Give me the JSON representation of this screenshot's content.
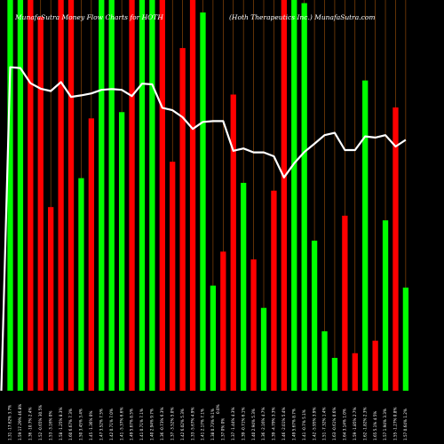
{
  "header": {
    "left": "MunafaSutra Money Flow Charts for HOTH",
    "right": "(Hoth Therapeutics Inc.) MunafaSutra.com"
  },
  "chart_data": {
    "type": "bar",
    "colors": {
      "up": "#00ff00",
      "down": "#ff0000",
      "line": "#ffffff",
      "grid": "#a0520a",
      "background": "#000000"
    },
    "ylim": [
      0,
      100
    ],
    "bars": [
      {
        "label": "1.31 -17.62% 3.7%",
        "value": 100,
        "dir": "up"
      },
      {
        "label": "1.59 17.29% 46.8%",
        "value": 100,
        "dir": "up"
      },
      {
        "label": "1.36 -10.7% 2.4%",
        "value": 100,
        "dir": "down"
      },
      {
        "label": "1.52 -0.65% 30.5%",
        "value": 95.7,
        "dir": "down"
      },
      {
        "label": "1.53 -3.16% 0%",
        "value": 47,
        "dir": "down"
      },
      {
        "label": "1.58 -1.25% 8.3%",
        "value": 100,
        "dir": "down"
      },
      {
        "label": "1.60 6.67% 7.3%",
        "value": 100,
        "dir": "down"
      },
      {
        "label": "1.50 3.45% 3.4%",
        "value": 54.4,
        "dir": "up"
      },
      {
        "label": "1.45 -1.36% 0%",
        "value": 69.7,
        "dir": "down"
      },
      {
        "label": "1.47 3.52% 7.5%",
        "value": 100,
        "dir": "up"
      },
      {
        "label": "1.42 0.71% 7.0%",
        "value": 100,
        "dir": "up"
      },
      {
        "label": "1.41 -5.37% 6.6%",
        "value": 71.3,
        "dir": "up"
      },
      {
        "label": "1.49 5.67% 8.5%",
        "value": 100,
        "dir": "down"
      },
      {
        "label": "1.41 0.71% 7.1%",
        "value": 100,
        "dir": "up"
      },
      {
        "label": "1.40 2.94% 9.7%",
        "value": 100,
        "dir": "up"
      },
      {
        "label": "1.36 -0.73% 6.3%",
        "value": 100,
        "dir": "down"
      },
      {
        "label": "1.37 -3.52% 5.0%",
        "value": 58.6,
        "dir": "down"
      },
      {
        "label": "1.42 6.02% 5.3%",
        "value": 87.7,
        "dir": "down"
      },
      {
        "label": "1.33 -5.67% 4.9%",
        "value": 100,
        "dir": "down"
      },
      {
        "label": "1.41 2.17% 7.1%",
        "value": 96.8,
        "dir": "up"
      },
      {
        "label": "1.38 0.73% 9.1%",
        "value": 26.9,
        "dir": "up"
      },
      {
        "label": "1.37 0% 0%",
        "value": 35.6,
        "dir": "down"
      },
      {
        "label": "1.37 -1.44% 4.3%",
        "value": 75.8,
        "dir": "down"
      },
      {
        "label": "1.39 -0.71% 6.1%",
        "value": 53.2,
        "dir": "up"
      },
      {
        "label": "1.40 2.94% 5.3%",
        "value": 33.6,
        "dir": "down"
      },
      {
        "label": "1.36 -2.16% 4.7%",
        "value": 21.2,
        "dir": "up"
      },
      {
        "label": "1.39 -4.79% 3.3%",
        "value": 51.2,
        "dir": "down"
      },
      {
        "label": "1.46 -2.01% 5.4%",
        "value": 100,
        "dir": "down"
      },
      {
        "label": "1.49 5.67% 8.7%",
        "value": 100,
        "dir": "up"
      },
      {
        "label": "1.41 -0.7% 5.1%",
        "value": 99.2,
        "dir": "up"
      },
      {
        "label": "1.42 -5.95% 3.9%",
        "value": 38.4,
        "dir": "up"
      },
      {
        "label": "1.51 -7.32% 1.4%",
        "value": 15.2,
        "dir": "up"
      },
      {
        "label": "1.63 -0.61% 0.6%",
        "value": 8.4,
        "dir": "up"
      },
      {
        "label": "1.64 3.14% 1.0%",
        "value": 44.8,
        "dir": "down"
      },
      {
        "label": "1.59 -1.85% 2.7%",
        "value": 9.6,
        "dir": "down"
      },
      {
        "label": "1.62 -1.82% 2.3%",
        "value": 79.4,
        "dir": "up"
      },
      {
        "label": "1.65 5.1% 4.5%",
        "value": 12.8,
        "dir": "down"
      },
      {
        "label": "1.57 1.94% 3.3%",
        "value": 43.6,
        "dir": "up"
      },
      {
        "label": "1.55 -1.27% 0.8%",
        "value": 72.5,
        "dir": "down"
      },
      {
        "label": "1.57 0.64% 1.2%",
        "value": 26.4,
        "dir": "up"
      }
    ],
    "line": [
      82.8,
      82.6,
      78.7,
      77.3,
      76.7,
      79.0,
      75.2,
      75.6,
      76.1,
      77.0,
      77.2,
      77.0,
      75.4,
      78.6,
      78.4,
      72.4,
      71.8,
      70.0,
      67.0,
      68.8,
      69.0,
      69.0,
      61.4,
      62.0,
      61.0,
      61.0,
      60.0,
      54.6,
      58.2,
      61.1,
      63.2,
      65.4,
      66.0,
      61.6,
      61.6,
      65.1,
      64.8,
      65.4,
      62.5,
      64.2
    ],
    "extra_labels": [
      "0.0%"
    ]
  }
}
